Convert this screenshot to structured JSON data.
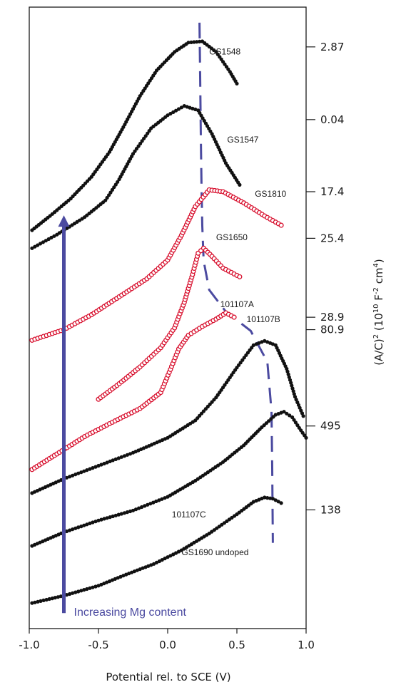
{
  "chart_data": {
    "type": "scatter",
    "title": "",
    "xlabel": "Potential rel. to SCE (V)",
    "ylabel_parts": [
      "(A/C)",
      "2",
      "  (10",
      "10",
      " F",
      "-2",
      " cm",
      "4",
      ")"
    ],
    "xlim": [
      -1.0,
      1.0
    ],
    "x_ticks": [
      -1.0,
      -0.5,
      0.0,
      0.5,
      1.0
    ],
    "x_tick_labels": [
      "-1.0",
      "-0.5",
      "0.0",
      "0.5",
      "1.0"
    ],
    "y_units": "offset, arbitrary",
    "ylim": [
      0,
      100
    ],
    "grid": false,
    "colors": {
      "black": "#111111",
      "red": "#d8102e",
      "blue": "#4b4aa0",
      "axis": "#1a1a1a"
    },
    "offset_ticks": [
      {
        "label": "2.87",
        "y": 93.6
      },
      {
        "label": "0.04",
        "y": 81.9
      },
      {
        "label": "17.4",
        "y": 70.3
      },
      {
        "label": "25.4",
        "y": 62.8
      },
      {
        "label": "28.9",
        "y": 50.1
      },
      {
        "label": "80.9",
        "y": 48.1
      },
      {
        "label": "495",
        "y": 32.6
      },
      {
        "label": "138",
        "y": 19.1
      }
    ],
    "series": [
      {
        "name": "GS1548",
        "color": "#111111",
        "marker": "dot",
        "label_x": 0.3,
        "label_y": 92.4,
        "points": [
          [
            -0.98,
            64.1
          ],
          [
            -0.85,
            66.4
          ],
          [
            -0.7,
            69.2
          ],
          [
            -0.55,
            72.7
          ],
          [
            -0.42,
            76.7
          ],
          [
            -0.32,
            80.7
          ],
          [
            -0.2,
            85.7
          ],
          [
            -0.08,
            89.8
          ],
          [
            0.05,
            92.8
          ],
          [
            0.15,
            94.3
          ],
          [
            0.25,
            94.5
          ],
          [
            0.35,
            92.8
          ],
          [
            0.45,
            89.6
          ],
          [
            0.5,
            87.7
          ]
        ]
      },
      {
        "name": "GS1547",
        "color": "#111111",
        "marker": "dot",
        "label_x": 0.43,
        "label_y": 78.2,
        "points": [
          [
            -0.98,
            61.2
          ],
          [
            -0.8,
            63.4
          ],
          [
            -0.6,
            66.2
          ],
          [
            -0.45,
            68.9
          ],
          [
            -0.35,
            72.3
          ],
          [
            -0.25,
            76.4
          ],
          [
            -0.12,
            80.5
          ],
          [
            0.0,
            82.6
          ],
          [
            0.12,
            84.1
          ],
          [
            0.22,
            83.4
          ],
          [
            0.32,
            79.6
          ],
          [
            0.42,
            74.9
          ],
          [
            0.52,
            71.4
          ]
        ]
      },
      {
        "name": "GS1810",
        "color": "#d8102e",
        "marker": "ring",
        "label_x": 0.63,
        "label_y": 69.5,
        "points": [
          [
            -0.98,
            46.4
          ],
          [
            -0.75,
            48.1
          ],
          [
            -0.55,
            50.5
          ],
          [
            -0.35,
            53.4
          ],
          [
            -0.15,
            56.3
          ],
          [
            0.0,
            59.3
          ],
          [
            0.1,
            63.3
          ],
          [
            0.2,
            67.9
          ],
          [
            0.3,
            70.6
          ],
          [
            0.4,
            70.3
          ],
          [
            0.55,
            68.5
          ],
          [
            0.7,
            66.4
          ],
          [
            0.82,
            64.9
          ]
        ]
      },
      {
        "name": "GS1650",
        "color": "#d8102e",
        "marker": "ring",
        "label_x": 0.35,
        "label_y": 62.5,
        "points": [
          [
            -0.5,
            36.9
          ],
          [
            -0.35,
            39.4
          ],
          [
            -0.2,
            42.1
          ],
          [
            -0.05,
            45.2
          ],
          [
            0.05,
            48.4
          ],
          [
            0.12,
            52.5
          ],
          [
            0.18,
            57.0
          ],
          [
            0.22,
            60.4
          ],
          [
            0.26,
            61.2
          ],
          [
            0.32,
            59.9
          ],
          [
            0.4,
            58.0
          ],
          [
            0.52,
            56.6
          ]
        ]
      },
      {
        "name": "101107A",
        "color": "#d8102e",
        "marker": "ring",
        "label_x": 0.38,
        "label_y": 51.7,
        "points": [
          [
            -0.98,
            25.6
          ],
          [
            -0.8,
            28.1
          ],
          [
            -0.6,
            30.9
          ],
          [
            -0.4,
            33.2
          ],
          [
            -0.2,
            35.4
          ],
          [
            -0.05,
            38.0
          ],
          [
            0.02,
            41.7
          ],
          [
            0.08,
            45.0
          ],
          [
            0.15,
            47.2
          ],
          [
            0.25,
            48.6
          ],
          [
            0.35,
            49.8
          ],
          [
            0.42,
            50.8
          ],
          [
            0.48,
            50.1
          ]
        ]
      },
      {
        "name": "101107B",
        "color": "#111111",
        "marker": "dot",
        "label_x": 0.57,
        "label_y": 49.3,
        "points": [
          [
            -0.98,
            21.8
          ],
          [
            -0.75,
            24.1
          ],
          [
            -0.5,
            26.2
          ],
          [
            -0.25,
            28.3
          ],
          [
            0.0,
            30.7
          ],
          [
            0.2,
            33.5
          ],
          [
            0.35,
            37.2
          ],
          [
            0.5,
            42.0
          ],
          [
            0.62,
            45.6
          ],
          [
            0.7,
            46.3
          ],
          [
            0.78,
            45.6
          ],
          [
            0.86,
            41.8
          ],
          [
            0.92,
            37.3
          ],
          [
            0.98,
            34.2
          ]
        ]
      },
      {
        "name": "101107C",
        "color": "#111111",
        "marker": "dot",
        "label_x": 0.03,
        "label_y": 17.9,
        "points": [
          [
            -0.98,
            13.3
          ],
          [
            -0.75,
            15.5
          ],
          [
            -0.5,
            17.4
          ],
          [
            -0.25,
            19.0
          ],
          [
            0.0,
            21.2
          ],
          [
            0.2,
            23.8
          ],
          [
            0.4,
            26.8
          ],
          [
            0.55,
            29.5
          ],
          [
            0.68,
            32.4
          ],
          [
            0.78,
            34.4
          ],
          [
            0.84,
            34.9
          ],
          [
            0.9,
            34.0
          ],
          [
            0.95,
            32.3
          ],
          [
            1.0,
            30.7
          ]
        ]
      },
      {
        "name": "GS1690 undoped",
        "color": "#111111",
        "marker": "dot",
        "label_x": 0.1,
        "label_y": 11.8,
        "points": [
          [
            -0.98,
            4.1
          ],
          [
            -0.75,
            5.3
          ],
          [
            -0.5,
            6.9
          ],
          [
            -0.3,
            8.7
          ],
          [
            -0.1,
            10.4
          ],
          [
            0.1,
            12.6
          ],
          [
            0.3,
            15.3
          ],
          [
            0.5,
            18.4
          ],
          [
            0.62,
            20.4
          ],
          [
            0.7,
            21.1
          ],
          [
            0.76,
            20.9
          ],
          [
            0.82,
            20.2
          ]
        ]
      }
    ],
    "peak_trend_line": {
      "color": "#4b4aa0",
      "style": "dashed",
      "points": [
        [
          0.23,
          97.5
        ],
        [
          0.235,
          88.0
        ],
        [
          0.24,
          78.0
        ],
        [
          0.245,
          70.5
        ],
        [
          0.25,
          64.8
        ],
        [
          0.26,
          59.2
        ],
        [
          0.3,
          54.5
        ],
        [
          0.42,
          51.0
        ],
        [
          0.6,
          47.9
        ],
        [
          0.72,
          42.9
        ],
        [
          0.75,
          35.0
        ],
        [
          0.755,
          26.0
        ],
        [
          0.76,
          13.8
        ]
      ]
    },
    "arrow": {
      "label": "Increasing Mg content",
      "x": -0.75,
      "y_from": 2.5,
      "y_to": 66.5,
      "color": "#4b4aa0"
    }
  }
}
